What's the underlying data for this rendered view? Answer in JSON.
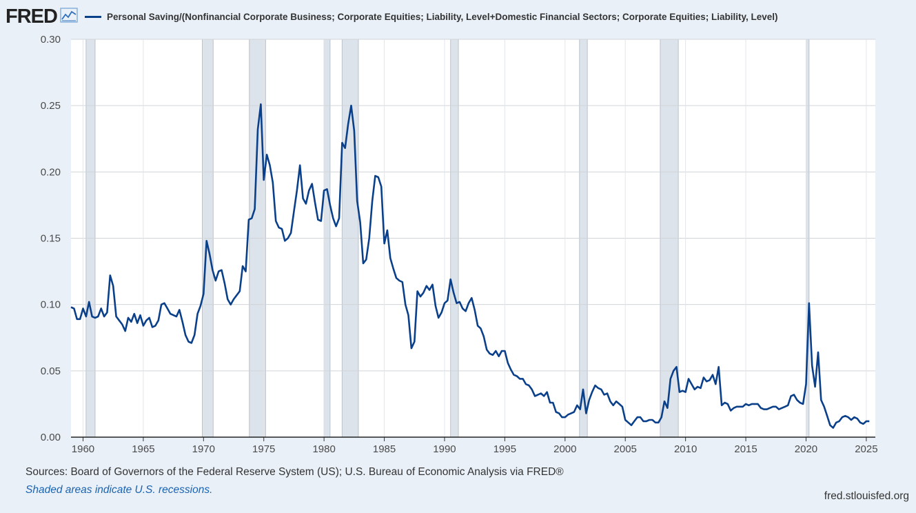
{
  "header": {
    "logo": "FRED",
    "logo_icon": "line-chart-icon",
    "series_label": "Personal Saving/(Nonfinancial Corporate Business; Corporate Equities; Liability, Level+Domestic Financial Sectors; Corporate Equities; Liability, Level)"
  },
  "footer": {
    "source": "Sources: Board of Governors of the Federal Reserve System (US); U.S. Bureau of Economic Analysis via FRED®",
    "recession_note": "Shaded areas indicate U.S. recessions.",
    "site": "fred.stlouisfed.org"
  },
  "colors": {
    "line": "#0a3f8a",
    "recession": "#dde3ea",
    "background": "#e9f0f8",
    "plot": "#ffffff"
  },
  "chart_data": {
    "type": "line",
    "title": "",
    "xlabel": "",
    "ylabel": "",
    "xlim": [
      1959.0,
      2025.75
    ],
    "ylim": [
      0,
      0.3
    ],
    "yticks": [
      {
        "value": 0.0,
        "label": "0.00"
      },
      {
        "value": 0.05,
        "label": "0.05"
      },
      {
        "value": 0.1,
        "label": "0.10"
      },
      {
        "value": 0.15,
        "label": "0.15"
      },
      {
        "value": 0.2,
        "label": "0.20"
      },
      {
        "value": 0.25,
        "label": "0.25"
      },
      {
        "value": 0.3,
        "label": "0.30"
      }
    ],
    "xticks": [
      {
        "value": 1960,
        "label": "1960"
      },
      {
        "value": 1965,
        "label": "1965"
      },
      {
        "value": 1970,
        "label": "1970"
      },
      {
        "value": 1975,
        "label": "1975"
      },
      {
        "value": 1980,
        "label": "1980"
      },
      {
        "value": 1985,
        "label": "1985"
      },
      {
        "value": 1990,
        "label": "1990"
      },
      {
        "value": 1995,
        "label": "1995"
      },
      {
        "value": 2000,
        "label": "2000"
      },
      {
        "value": 2005,
        "label": "2005"
      },
      {
        "value": 2010,
        "label": "2010"
      },
      {
        "value": 2015,
        "label": "2015"
      },
      {
        "value": 2020,
        "label": "2020"
      },
      {
        "value": 2025,
        "label": "2025"
      }
    ],
    "grid": true,
    "legend": "top-left",
    "recessions": [
      [
        1960.25,
        1961.0
      ],
      [
        1969.9,
        1970.8
      ],
      [
        1973.8,
        1975.15
      ],
      [
        1980.0,
        1980.5
      ],
      [
        1981.5,
        1982.85
      ],
      [
        1990.5,
        1991.15
      ],
      [
        2001.2,
        2001.85
      ],
      [
        2007.9,
        2009.4
      ],
      [
        2020.0,
        2020.25
      ]
    ],
    "series": [
      {
        "name": "Personal Saving/(Nonfinancial Corporate Business; Corporate Equities; Liability, Level+Domestic Financial Sectors; Corporate Equities; Liability, Level)",
        "points": [
          [
            1959.0,
            0.098
          ],
          [
            1959.25,
            0.097
          ],
          [
            1959.5,
            0.089
          ],
          [
            1959.75,
            0.089
          ],
          [
            1960.0,
            0.097
          ],
          [
            1960.25,
            0.091
          ],
          [
            1960.5,
            0.102
          ],
          [
            1960.75,
            0.091
          ],
          [
            1961.0,
            0.09
          ],
          [
            1961.25,
            0.091
          ],
          [
            1961.5,
            0.097
          ],
          [
            1961.75,
            0.091
          ],
          [
            1962.0,
            0.094
          ],
          [
            1962.25,
            0.122
          ],
          [
            1962.5,
            0.114
          ],
          [
            1962.75,
            0.091
          ],
          [
            1963.0,
            0.088
          ],
          [
            1963.25,
            0.085
          ],
          [
            1963.5,
            0.08
          ],
          [
            1963.75,
            0.09
          ],
          [
            1964.0,
            0.087
          ],
          [
            1964.25,
            0.093
          ],
          [
            1964.5,
            0.086
          ],
          [
            1964.75,
            0.092
          ],
          [
            1965.0,
            0.084
          ],
          [
            1965.25,
            0.088
          ],
          [
            1965.5,
            0.09
          ],
          [
            1965.75,
            0.083
          ],
          [
            1966.0,
            0.084
          ],
          [
            1966.25,
            0.088
          ],
          [
            1966.5,
            0.1
          ],
          [
            1966.75,
            0.101
          ],
          [
            1967.0,
            0.097
          ],
          [
            1967.25,
            0.093
          ],
          [
            1967.5,
            0.092
          ],
          [
            1967.75,
            0.091
          ],
          [
            1968.0,
            0.096
          ],
          [
            1968.25,
            0.087
          ],
          [
            1968.5,
            0.077
          ],
          [
            1968.75,
            0.072
          ],
          [
            1969.0,
            0.071
          ],
          [
            1969.25,
            0.077
          ],
          [
            1969.5,
            0.093
          ],
          [
            1969.75,
            0.099
          ],
          [
            1970.0,
            0.108
          ],
          [
            1970.25,
            0.148
          ],
          [
            1970.5,
            0.138
          ],
          [
            1970.75,
            0.126
          ],
          [
            1971.0,
            0.118
          ],
          [
            1971.25,
            0.125
          ],
          [
            1971.5,
            0.126
          ],
          [
            1971.75,
            0.116
          ],
          [
            1972.0,
            0.104
          ],
          [
            1972.25,
            0.1
          ],
          [
            1972.5,
            0.104
          ],
          [
            1972.75,
            0.107
          ],
          [
            1973.0,
            0.11
          ],
          [
            1973.25,
            0.129
          ],
          [
            1973.5,
            0.125
          ],
          [
            1973.75,
            0.164
          ],
          [
            1974.0,
            0.165
          ],
          [
            1974.25,
            0.172
          ],
          [
            1974.5,
            0.232
          ],
          [
            1974.75,
            0.251
          ],
          [
            1975.0,
            0.194
          ],
          [
            1975.25,
            0.213
          ],
          [
            1975.5,
            0.205
          ],
          [
            1975.75,
            0.192
          ],
          [
            1976.0,
            0.163
          ],
          [
            1976.25,
            0.158
          ],
          [
            1976.5,
            0.157
          ],
          [
            1976.75,
            0.148
          ],
          [
            1977.0,
            0.15
          ],
          [
            1977.25,
            0.154
          ],
          [
            1977.5,
            0.17
          ],
          [
            1977.75,
            0.186
          ],
          [
            1978.0,
            0.205
          ],
          [
            1978.25,
            0.18
          ],
          [
            1978.5,
            0.176
          ],
          [
            1978.75,
            0.186
          ],
          [
            1979.0,
            0.191
          ],
          [
            1979.25,
            0.177
          ],
          [
            1979.5,
            0.164
          ],
          [
            1979.75,
            0.163
          ],
          [
            1980.0,
            0.186
          ],
          [
            1980.25,
            0.187
          ],
          [
            1980.5,
            0.175
          ],
          [
            1980.75,
            0.165
          ],
          [
            1981.0,
            0.159
          ],
          [
            1981.25,
            0.165
          ],
          [
            1981.5,
            0.222
          ],
          [
            1981.75,
            0.218
          ],
          [
            1982.0,
            0.236
          ],
          [
            1982.25,
            0.25
          ],
          [
            1982.5,
            0.231
          ],
          [
            1982.75,
            0.178
          ],
          [
            1983.0,
            0.162
          ],
          [
            1983.25,
            0.131
          ],
          [
            1983.5,
            0.134
          ],
          [
            1983.75,
            0.15
          ],
          [
            1984.0,
            0.178
          ],
          [
            1984.25,
            0.197
          ],
          [
            1984.5,
            0.196
          ],
          [
            1984.75,
            0.189
          ],
          [
            1985.0,
            0.146
          ],
          [
            1985.25,
            0.156
          ],
          [
            1985.5,
            0.135
          ],
          [
            1985.75,
            0.127
          ],
          [
            1986.0,
            0.12
          ],
          [
            1986.25,
            0.118
          ],
          [
            1986.5,
            0.117
          ],
          [
            1986.75,
            0.1
          ],
          [
            1987.0,
            0.092
          ],
          [
            1987.25,
            0.067
          ],
          [
            1987.5,
            0.072
          ],
          [
            1987.75,
            0.11
          ],
          [
            1988.0,
            0.106
          ],
          [
            1988.25,
            0.109
          ],
          [
            1988.5,
            0.114
          ],
          [
            1988.75,
            0.111
          ],
          [
            1989.0,
            0.115
          ],
          [
            1989.25,
            0.099
          ],
          [
            1989.5,
            0.09
          ],
          [
            1989.75,
            0.094
          ],
          [
            1990.0,
            0.101
          ],
          [
            1990.25,
            0.103
          ],
          [
            1990.5,
            0.119
          ],
          [
            1990.75,
            0.109
          ],
          [
            1991.0,
            0.101
          ],
          [
            1991.25,
            0.102
          ],
          [
            1991.5,
            0.097
          ],
          [
            1991.75,
            0.095
          ],
          [
            1992.0,
            0.101
          ],
          [
            1992.25,
            0.105
          ],
          [
            1992.5,
            0.096
          ],
          [
            1992.75,
            0.084
          ],
          [
            1993.0,
            0.082
          ],
          [
            1993.25,
            0.076
          ],
          [
            1993.5,
            0.066
          ],
          [
            1993.75,
            0.063
          ],
          [
            1994.0,
            0.062
          ],
          [
            1994.25,
            0.065
          ],
          [
            1994.5,
            0.061
          ],
          [
            1994.75,
            0.065
          ],
          [
            1995.0,
            0.065
          ],
          [
            1995.25,
            0.056
          ],
          [
            1995.5,
            0.051
          ],
          [
            1995.75,
            0.047
          ],
          [
            1996.0,
            0.046
          ],
          [
            1996.25,
            0.044
          ],
          [
            1996.5,
            0.044
          ],
          [
            1996.75,
            0.04
          ],
          [
            1997.0,
            0.039
          ],
          [
            1997.25,
            0.036
          ],
          [
            1997.5,
            0.031
          ],
          [
            1997.75,
            0.032
          ],
          [
            1998.0,
            0.033
          ],
          [
            1998.25,
            0.031
          ],
          [
            1998.5,
            0.034
          ],
          [
            1998.75,
            0.026
          ],
          [
            1999.0,
            0.026
          ],
          [
            1999.25,
            0.019
          ],
          [
            1999.5,
            0.018
          ],
          [
            1999.75,
            0.015
          ],
          [
            2000.0,
            0.015
          ],
          [
            2000.25,
            0.017
          ],
          [
            2000.5,
            0.018
          ],
          [
            2000.75,
            0.019
          ],
          [
            2001.0,
            0.024
          ],
          [
            2001.25,
            0.021
          ],
          [
            2001.5,
            0.036
          ],
          [
            2001.75,
            0.018
          ],
          [
            2002.0,
            0.028
          ],
          [
            2002.25,
            0.034
          ],
          [
            2002.5,
            0.039
          ],
          [
            2002.75,
            0.037
          ],
          [
            2003.0,
            0.036
          ],
          [
            2003.25,
            0.032
          ],
          [
            2003.5,
            0.033
          ],
          [
            2003.75,
            0.027
          ],
          [
            2004.0,
            0.024
          ],
          [
            2004.25,
            0.027
          ],
          [
            2004.5,
            0.025
          ],
          [
            2004.75,
            0.023
          ],
          [
            2005.0,
            0.013
          ],
          [
            2005.25,
            0.011
          ],
          [
            2005.5,
            0.009
          ],
          [
            2005.75,
            0.012
          ],
          [
            2006.0,
            0.015
          ],
          [
            2006.25,
            0.015
          ],
          [
            2006.5,
            0.012
          ],
          [
            2006.75,
            0.012
          ],
          [
            2007.0,
            0.013
          ],
          [
            2007.25,
            0.013
          ],
          [
            2007.5,
            0.011
          ],
          [
            2007.75,
            0.011
          ],
          [
            2008.0,
            0.015
          ],
          [
            2008.25,
            0.027
          ],
          [
            2008.5,
            0.022
          ],
          [
            2008.75,
            0.044
          ],
          [
            2009.0,
            0.05
          ],
          [
            2009.25,
            0.053
          ],
          [
            2009.5,
            0.034
          ],
          [
            2009.75,
            0.035
          ],
          [
            2010.0,
            0.034
          ],
          [
            2010.25,
            0.044
          ],
          [
            2010.5,
            0.04
          ],
          [
            2010.75,
            0.036
          ],
          [
            2011.0,
            0.038
          ],
          [
            2011.25,
            0.037
          ],
          [
            2011.5,
            0.045
          ],
          [
            2011.75,
            0.042
          ],
          [
            2012.0,
            0.043
          ],
          [
            2012.25,
            0.047
          ],
          [
            2012.5,
            0.04
          ],
          [
            2012.75,
            0.053
          ],
          [
            2013.0,
            0.024
          ],
          [
            2013.25,
            0.026
          ],
          [
            2013.5,
            0.025
          ],
          [
            2013.75,
            0.02
          ],
          [
            2014.0,
            0.022
          ],
          [
            2014.25,
            0.023
          ],
          [
            2014.5,
            0.023
          ],
          [
            2014.75,
            0.023
          ],
          [
            2015.0,
            0.025
          ],
          [
            2015.25,
            0.024
          ],
          [
            2015.5,
            0.025
          ],
          [
            2015.75,
            0.025
          ],
          [
            2016.0,
            0.025
          ],
          [
            2016.25,
            0.022
          ],
          [
            2016.5,
            0.021
          ],
          [
            2016.75,
            0.021
          ],
          [
            2017.0,
            0.022
          ],
          [
            2017.25,
            0.023
          ],
          [
            2017.5,
            0.023
          ],
          [
            2017.75,
            0.021
          ],
          [
            2018.0,
            0.022
          ],
          [
            2018.25,
            0.023
          ],
          [
            2018.5,
            0.024
          ],
          [
            2018.75,
            0.031
          ],
          [
            2019.0,
            0.032
          ],
          [
            2019.25,
            0.028
          ],
          [
            2019.5,
            0.026
          ],
          [
            2019.75,
            0.025
          ],
          [
            2020.0,
            0.04
          ],
          [
            2020.25,
            0.101
          ],
          [
            2020.5,
            0.054
          ],
          [
            2020.75,
            0.038
          ],
          [
            2021.0,
            0.064
          ],
          [
            2021.25,
            0.028
          ],
          [
            2021.5,
            0.023
          ],
          [
            2021.75,
            0.016
          ],
          [
            2022.0,
            0.009
          ],
          [
            2022.25,
            0.007
          ],
          [
            2022.5,
            0.011
          ],
          [
            2022.75,
            0.012
          ],
          [
            2023.0,
            0.015
          ],
          [
            2023.25,
            0.016
          ],
          [
            2023.5,
            0.015
          ],
          [
            2023.75,
            0.013
          ],
          [
            2024.0,
            0.015
          ],
          [
            2024.25,
            0.014
          ],
          [
            2024.5,
            0.011
          ],
          [
            2024.75,
            0.01
          ],
          [
            2025.0,
            0.012
          ],
          [
            2025.25,
            0.012
          ]
        ]
      }
    ]
  }
}
